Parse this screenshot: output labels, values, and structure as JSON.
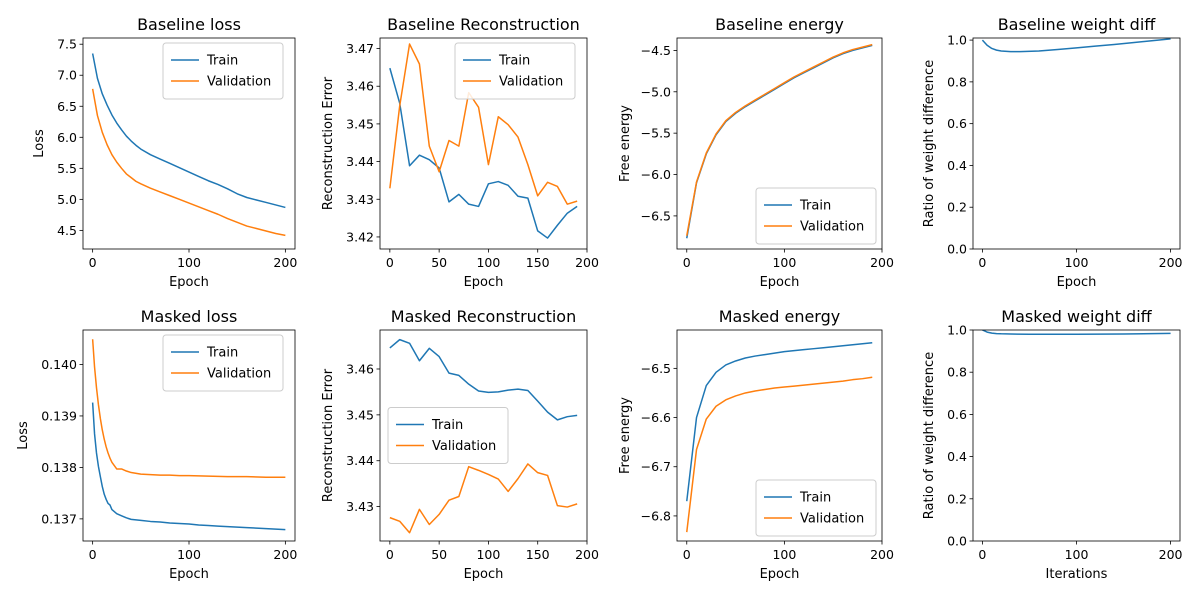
{
  "colors": {
    "train": "#1f77b4",
    "validation": "#ff7f0e",
    "axis": "#000000",
    "legend_border": "#cccccc"
  },
  "chart_data": [
    {
      "type": "line",
      "title": "Baseline loss",
      "xlabel": "Epoch",
      "ylabel": "Loss",
      "xlim": [
        -10,
        210
      ],
      "ylim": [
        4.2,
        7.6
      ],
      "xticks": [
        0,
        100,
        200
      ],
      "xtick_labels": [
        "0",
        "100",
        "200"
      ],
      "yticks": [
        4.5,
        5.0,
        5.5,
        6.0,
        6.5,
        7.0,
        7.5
      ],
      "ytick_labels": [
        "4.5",
        "5.0",
        "5.5",
        "6.0",
        "6.5",
        "7.0",
        "7.5"
      ],
      "legend": "upper-right",
      "series": [
        {
          "name": "Train",
          "color": "#1f77b4",
          "x": [
            0,
            5,
            10,
            15,
            20,
            25,
            30,
            35,
            40,
            45,
            50,
            60,
            70,
            80,
            90,
            100,
            110,
            120,
            130,
            140,
            150,
            160,
            170,
            180,
            190,
            200
          ],
          "y": [
            7.35,
            6.95,
            6.7,
            6.52,
            6.36,
            6.23,
            6.12,
            6.02,
            5.94,
            5.87,
            5.81,
            5.72,
            5.65,
            5.58,
            5.51,
            5.44,
            5.37,
            5.3,
            5.24,
            5.17,
            5.09,
            5.03,
            4.99,
            4.95,
            4.91,
            4.87
          ]
        },
        {
          "name": "Validation",
          "color": "#ff7f0e",
          "x": [
            0,
            5,
            10,
            15,
            20,
            25,
            30,
            35,
            40,
            45,
            50,
            60,
            70,
            80,
            90,
            100,
            110,
            120,
            130,
            140,
            150,
            160,
            170,
            180,
            190,
            200
          ],
          "y": [
            6.78,
            6.35,
            6.08,
            5.88,
            5.72,
            5.6,
            5.5,
            5.41,
            5.35,
            5.29,
            5.25,
            5.18,
            5.12,
            5.06,
            5.0,
            4.94,
            4.88,
            4.82,
            4.76,
            4.69,
            4.63,
            4.57,
            4.53,
            4.49,
            4.45,
            4.42
          ]
        }
      ]
    },
    {
      "type": "line",
      "title": "Baseline Reconstruction",
      "xlabel": "Epoch",
      "ylabel": "Reconstruction Error",
      "xlim": [
        -10,
        200
      ],
      "ylim": [
        3.4168,
        3.4728
      ],
      "xticks": [
        0,
        50,
        100,
        150,
        200
      ],
      "xtick_labels": [
        "0",
        "50",
        "100",
        "150",
        "200"
      ],
      "yticks": [
        3.42,
        3.43,
        3.44,
        3.45,
        3.46,
        3.47
      ],
      "ytick_labels": [
        "3.42",
        "3.43",
        "3.44",
        "3.45",
        "3.46",
        "3.47"
      ],
      "legend": "upper-right",
      "series": [
        {
          "name": "Train",
          "color": "#1f77b4",
          "x": [
            0,
            10,
            20,
            30,
            40,
            50,
            60,
            70,
            80,
            90,
            100,
            110,
            120,
            130,
            140,
            150,
            160,
            170,
            180,
            190
          ],
          "y": [
            3.4648,
            3.4555,
            3.4389,
            3.4417,
            3.4405,
            3.4383,
            3.4293,
            3.4313,
            3.4287,
            3.4281,
            3.4341,
            3.4347,
            3.4337,
            3.4308,
            3.4303,
            3.4216,
            3.4197,
            3.4231,
            3.4263,
            3.4281
          ]
        },
        {
          "name": "Validation",
          "color": "#ff7f0e",
          "x": [
            0,
            10,
            20,
            30,
            40,
            50,
            60,
            70,
            80,
            90,
            100,
            110,
            120,
            130,
            140,
            150,
            160,
            170,
            180,
            190
          ],
          "y": [
            3.4329,
            3.4548,
            3.4712,
            3.4659,
            3.4441,
            3.4373,
            3.4456,
            3.4441,
            3.4583,
            3.4544,
            3.4392,
            3.4519,
            3.4498,
            3.4465,
            3.4392,
            3.4309,
            3.4345,
            3.4334,
            3.4287,
            3.4295
          ]
        }
      ]
    },
    {
      "type": "line",
      "title": "Baseline energy",
      "xlabel": "Epoch",
      "ylabel": "Free energy",
      "xlim": [
        -10,
        200
      ],
      "ylim": [
        -6.9,
        -4.35
      ],
      "xticks": [
        0,
        100,
        200
      ],
      "xtick_labels": [
        "0",
        "100",
        "200"
      ],
      "yticks": [
        -6.5,
        -6.0,
        -5.5,
        -5.0,
        -4.5
      ],
      "ytick_labels": [
        "−6.5",
        "−6.0",
        "−5.5",
        "−5.0",
        "−4.5"
      ],
      "legend": "lower-right",
      "series": [
        {
          "name": "Train",
          "color": "#1f77b4",
          "x": [
            0,
            10,
            20,
            30,
            40,
            50,
            60,
            70,
            80,
            90,
            100,
            110,
            120,
            130,
            140,
            150,
            160,
            170,
            180,
            190
          ],
          "y": [
            -6.77,
            -6.1,
            -5.75,
            -5.52,
            -5.36,
            -5.26,
            -5.18,
            -5.11,
            -5.04,
            -4.97,
            -4.9,
            -4.83,
            -4.77,
            -4.71,
            -4.65,
            -4.59,
            -4.54,
            -4.5,
            -4.47,
            -4.44
          ]
        },
        {
          "name": "Validation",
          "color": "#ff7f0e",
          "x": [
            0,
            10,
            20,
            30,
            40,
            50,
            60,
            70,
            80,
            90,
            100,
            110,
            120,
            130,
            140,
            150,
            160,
            170,
            180,
            190
          ],
          "y": [
            -6.74,
            -6.09,
            -5.74,
            -5.51,
            -5.35,
            -5.25,
            -5.17,
            -5.1,
            -5.03,
            -4.96,
            -4.89,
            -4.82,
            -4.76,
            -4.7,
            -4.64,
            -4.58,
            -4.53,
            -4.49,
            -4.46,
            -4.43
          ]
        }
      ]
    },
    {
      "type": "line",
      "title": "Baseline weight diff",
      "xlabel": "Epoch",
      "ylabel": "Ratio of weight difference",
      "xlim": [
        -10,
        210
      ],
      "ylim": [
        0,
        1.01
      ],
      "xticks": [
        0,
        100,
        200
      ],
      "xtick_labels": [
        "0",
        "100",
        "200"
      ],
      "yticks": [
        0.0,
        0.2,
        0.4,
        0.6,
        0.8,
        1.0
      ],
      "ytick_labels": [
        "0.0",
        "0.2",
        "0.4",
        "0.6",
        "0.8",
        "1.0"
      ],
      "legend": "none",
      "series": [
        {
          "color": "#1f77b4",
          "x": [
            0,
            5,
            10,
            15,
            20,
            30,
            40,
            60,
            80,
            100,
            120,
            140,
            160,
            180,
            200
          ],
          "y": [
            1.0,
            0.975,
            0.96,
            0.952,
            0.948,
            0.945,
            0.945,
            0.948,
            0.955,
            0.963,
            0.971,
            0.979,
            0.988,
            0.997,
            1.006
          ]
        }
      ]
    },
    {
      "type": "line",
      "title": "Masked loss",
      "xlabel": "Epoch",
      "ylabel": "Loss",
      "xlim": [
        -10,
        210
      ],
      "ylim": [
        0.13657,
        0.14067
      ],
      "xticks": [
        0,
        100,
        200
      ],
      "xtick_labels": [
        "0",
        "100",
        "200"
      ],
      "yticks": [
        0.137,
        0.138,
        0.139,
        0.14
      ],
      "ytick_labels": [
        "0.137",
        "0.138",
        "0.139",
        "0.140"
      ],
      "legend": "upper-right",
      "series": [
        {
          "name": "Train",
          "color": "#1f77b4",
          "x": [
            0,
            2,
            4,
            6,
            8,
            10,
            12,
            14,
            16,
            18,
            20,
            25,
            30,
            35,
            40,
            50,
            60,
            70,
            80,
            90,
            100,
            110,
            120,
            130,
            140,
            150,
            160,
            170,
            180,
            190,
            200
          ],
          "y": [
            0.13926,
            0.13865,
            0.13828,
            0.13802,
            0.13782,
            0.13763,
            0.13748,
            0.13738,
            0.1373,
            0.13727,
            0.13718,
            0.1371,
            0.13706,
            0.13702,
            0.13699,
            0.13697,
            0.13695,
            0.13694,
            0.13692,
            0.13691,
            0.1369,
            0.13688,
            0.13687,
            0.13686,
            0.13685,
            0.13684,
            0.13683,
            0.13682,
            0.13681,
            0.1368,
            0.13679
          ]
        },
        {
          "name": "Validation",
          "color": "#ff7f0e",
          "x": [
            0,
            2,
            4,
            6,
            8,
            10,
            12,
            14,
            16,
            18,
            20,
            25,
            30,
            35,
            40,
            50,
            60,
            70,
            80,
            90,
            100,
            120,
            140,
            160,
            180,
            200
          ],
          "y": [
            0.14049,
            0.13995,
            0.13955,
            0.13922,
            0.13895,
            0.13873,
            0.13855,
            0.1384,
            0.13828,
            0.13818,
            0.1381,
            0.13797,
            0.13797,
            0.13793,
            0.1379,
            0.13787,
            0.13786,
            0.13785,
            0.13785,
            0.13784,
            0.13784,
            0.13783,
            0.13782,
            0.13782,
            0.13781,
            0.13781
          ]
        }
      ]
    },
    {
      "type": "line",
      "title": "Masked Reconstruction",
      "xlabel": "Epoch",
      "ylabel": "Reconstruction Error",
      "xlim": [
        -10,
        200
      ],
      "ylim": [
        3.4225,
        3.4685
      ],
      "xticks": [
        0,
        50,
        100,
        150,
        200
      ],
      "xtick_labels": [
        "0",
        "50",
        "100",
        "150",
        "200"
      ],
      "yticks": [
        3.43,
        3.44,
        3.45,
        3.46
      ],
      "ytick_labels": [
        "3.43",
        "3.44",
        "3.45",
        "3.46"
      ],
      "legend": "center-left",
      "series": [
        {
          "name": "Train",
          "color": "#1f77b4",
          "x": [
            0,
            10,
            20,
            30,
            40,
            50,
            60,
            70,
            80,
            90,
            100,
            110,
            120,
            130,
            140,
            150,
            160,
            170,
            180,
            190
          ],
          "y": [
            3.4646,
            3.4664,
            3.4656,
            3.4618,
            3.4645,
            3.4627,
            3.4591,
            3.4586,
            3.4567,
            3.4552,
            3.4549,
            3.455,
            3.4554,
            3.4556,
            3.4553,
            3.453,
            3.4506,
            3.4489,
            3.4496,
            3.4499
          ]
        },
        {
          "name": "Validation",
          "color": "#ff7f0e",
          "x": [
            0,
            10,
            20,
            30,
            40,
            50,
            60,
            70,
            80,
            90,
            100,
            110,
            120,
            130,
            140,
            150,
            160,
            170,
            180,
            190
          ],
          "y": [
            3.4276,
            3.4268,
            3.4243,
            3.4294,
            3.4261,
            3.4283,
            3.4314,
            3.4322,
            3.4387,
            3.4379,
            3.437,
            3.436,
            3.4333,
            3.4361,
            3.4393,
            3.4374,
            3.4368,
            3.4302,
            3.4299,
            3.4306
          ]
        }
      ]
    },
    {
      "type": "line",
      "title": "Masked energy",
      "xlabel": "Epoch",
      "ylabel": "Free energy",
      "xlim": [
        -10,
        200
      ],
      "ylim": [
        -6.851,
        -6.422
      ],
      "xticks": [
        0,
        100,
        200
      ],
      "xtick_labels": [
        "0",
        "100",
        "200"
      ],
      "yticks": [
        -6.8,
        -6.7,
        -6.6,
        -6.5
      ],
      "ytick_labels": [
        "−6.8",
        "−6.7",
        "−6.6",
        "−6.5"
      ],
      "legend": "lower-right",
      "series": [
        {
          "name": "Train",
          "color": "#1f77b4",
          "x": [
            0,
            10,
            20,
            30,
            40,
            50,
            60,
            70,
            80,
            90,
            100,
            110,
            120,
            130,
            140,
            150,
            160,
            170,
            180,
            190
          ],
          "y": [
            -6.77,
            -6.6,
            -6.535,
            -6.508,
            -6.493,
            -6.485,
            -6.479,
            -6.475,
            -6.472,
            -6.469,
            -6.466,
            -6.464,
            -6.462,
            -6.46,
            -6.458,
            -6.456,
            -6.454,
            -6.452,
            -6.45,
            -6.448
          ]
        },
        {
          "name": "Validation",
          "color": "#ff7f0e",
          "x": [
            0,
            10,
            20,
            30,
            40,
            50,
            60,
            70,
            80,
            90,
            100,
            110,
            120,
            130,
            140,
            150,
            160,
            170,
            180,
            190
          ],
          "y": [
            -6.833,
            -6.665,
            -6.603,
            -6.577,
            -6.564,
            -6.556,
            -6.55,
            -6.546,
            -6.543,
            -6.54,
            -6.538,
            -6.536,
            -6.534,
            -6.532,
            -6.53,
            -6.528,
            -6.526,
            -6.523,
            -6.521,
            -6.518
          ]
        }
      ]
    },
    {
      "type": "line",
      "title": "Masked weight diff",
      "xlabel": "Iterations",
      "ylabel": "Ratio of weight difference",
      "xlim": [
        -10,
        210
      ],
      "ylim": [
        0,
        1.0
      ],
      "xticks": [
        0,
        100,
        200
      ],
      "xtick_labels": [
        "0",
        "100",
        "200"
      ],
      "yticks": [
        0.0,
        0.2,
        0.4,
        0.6,
        0.8,
        1.0
      ],
      "ytick_labels": [
        "0.0",
        "0.2",
        "0.4",
        "0.6",
        "0.8",
        "1.0"
      ],
      "legend": "none",
      "series": [
        {
          "color": "#1f77b4",
          "x": [
            0,
            5,
            10,
            15,
            20,
            30,
            50,
            100,
            150,
            200
          ],
          "y": [
            1.0,
            0.99,
            0.985,
            0.983,
            0.982,
            0.981,
            0.98,
            0.98,
            0.981,
            0.984
          ]
        }
      ]
    }
  ]
}
